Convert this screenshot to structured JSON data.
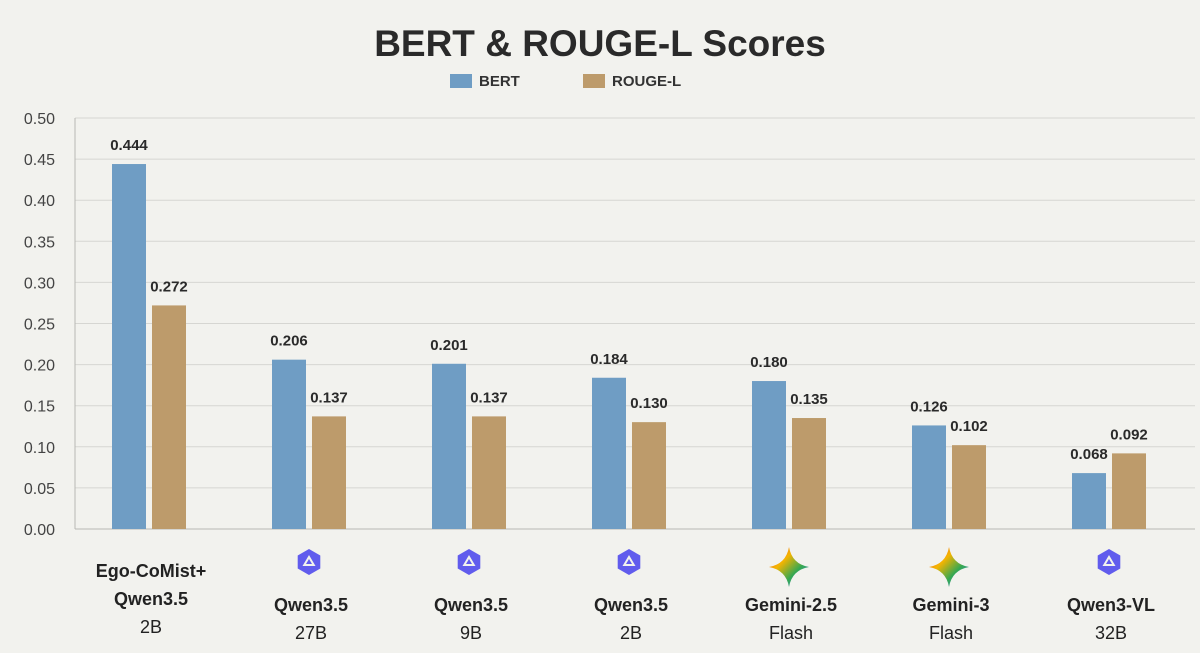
{
  "chart_data": {
    "type": "bar",
    "title": "BERT & ROUGE-L Scores",
    "xlabel": "",
    "ylabel": "",
    "ylim": [
      0,
      0.5
    ],
    "yticks": [
      "0.00",
      "0.05",
      "0.10",
      "0.15",
      "0.20",
      "0.25",
      "0.30",
      "0.35",
      "0.40",
      "0.45",
      "0.50"
    ],
    "grid": true,
    "legend_position": "top-center",
    "categories": [
      {
        "lines": [
          "Ego-CoMist+",
          "Qwen3.5"
        ],
        "sub": "2B",
        "icon": "none"
      },
      {
        "lines": [
          "Qwen3.5"
        ],
        "sub": "27B",
        "icon": "qwen-logo-icon"
      },
      {
        "lines": [
          "Qwen3.5"
        ],
        "sub": "9B",
        "icon": "qwen-logo-icon"
      },
      {
        "lines": [
          "Qwen3.5"
        ],
        "sub": "2B",
        "icon": "qwen-logo-icon"
      },
      {
        "lines": [
          "Gemini-2.5"
        ],
        "sub": "Flash",
        "icon": "gemini-logo-icon"
      },
      {
        "lines": [
          "Gemini-3"
        ],
        "sub": "Flash",
        "icon": "gemini-logo-icon"
      },
      {
        "lines": [
          "Qwen3-VL"
        ],
        "sub": "32B",
        "icon": "qwen-logo-icon"
      }
    ],
    "series": [
      {
        "name": "BERT",
        "color": "#6f9dc4",
        "values": [
          0.444,
          0.206,
          0.201,
          0.184,
          0.18,
          0.126,
          0.068
        ],
        "labels": [
          "0.444",
          "0.206",
          "0.201",
          "0.184",
          "0.180",
          "0.126",
          "0.068"
        ]
      },
      {
        "name": "ROUGE-L",
        "color": "#bd9b6b",
        "values": [
          0.272,
          0.137,
          0.137,
          0.13,
          0.135,
          0.102,
          0.092
        ],
        "labels": [
          "0.272",
          "0.137",
          "0.137",
          "0.130",
          "0.135",
          "0.102",
          "0.092"
        ]
      }
    ]
  }
}
